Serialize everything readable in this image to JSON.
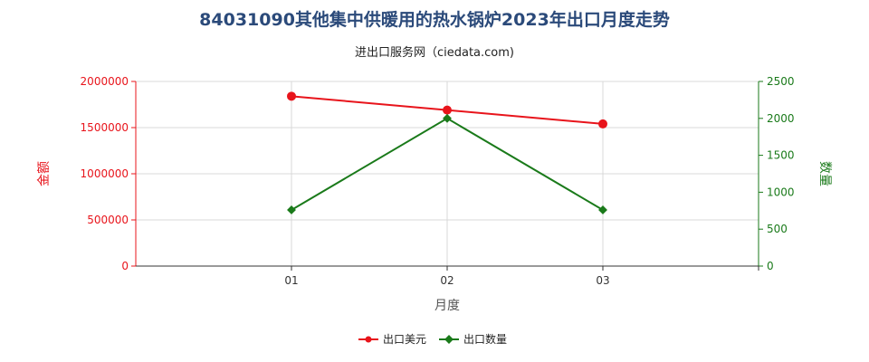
{
  "chart_data": {
    "type": "line",
    "title": "84031090其他集中供暖用的热水锅炉2023年出口月度走势",
    "subtitle": "进出口服务网（ciedata.com)",
    "xlabel": "月度",
    "ylabel_left": "金额",
    "ylabel_right": "数量",
    "categories": [
      "01",
      "02",
      "03"
    ],
    "ylim_left": [
      0,
      2000000
    ],
    "yticks_left": [
      "0",
      "500000",
      "1000000",
      "1500000",
      "2000000"
    ],
    "ylim_right": [
      0,
      2500
    ],
    "yticks_right": [
      "0",
      "500",
      "1000",
      "1500",
      "2000",
      "2500"
    ],
    "grid": true,
    "legend_position": "bottom-center",
    "series": [
      {
        "name": "出口美元",
        "axis": "left",
        "color": "#e8141b",
        "marker": "circle",
        "values": [
          1840000,
          1690000,
          1540000
        ]
      },
      {
        "name": "出口数量",
        "axis": "right",
        "color": "#1a7a1a",
        "marker": "diamond",
        "values": [
          760,
          2000,
          760
        ]
      }
    ]
  }
}
